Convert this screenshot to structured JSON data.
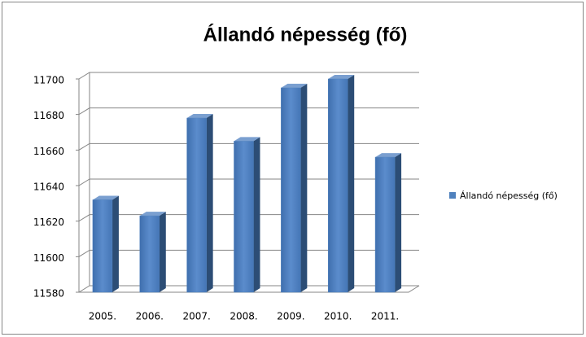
{
  "chart_data": {
    "type": "bar",
    "title": "Állandó népesség (fő)",
    "categories": [
      "2005.",
      "2006.",
      "2007.",
      "2008.",
      "2009.",
      "2010.",
      "2011."
    ],
    "series": [
      {
        "name": "Állandó népesség (fő)",
        "color": "#4f81bd",
        "values": [
          11632,
          11623,
          11678,
          11665,
          11695,
          11700,
          11656
        ]
      }
    ],
    "ylim": [
      11580,
      11700
    ],
    "yticks": [
      11580,
      11600,
      11620,
      11640,
      11660,
      11680,
      11700
    ],
    "grid": true,
    "legend": "right"
  }
}
